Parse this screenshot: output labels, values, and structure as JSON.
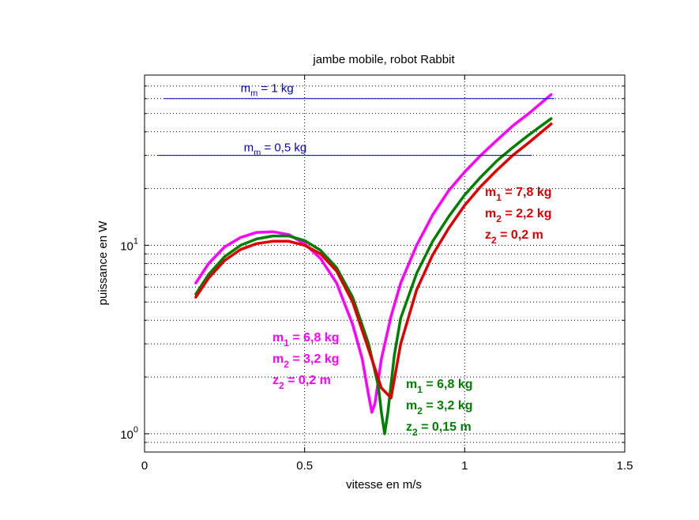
{
  "chart_data": {
    "type": "line",
    "title": "jambe mobile, robot Rabbit",
    "xlabel": "vitesse en m/s",
    "ylabel": "puissance en W",
    "xlim": [
      0,
      1.5
    ],
    "ylim": [
      0.8,
      80
    ],
    "yscale": "log",
    "grid": true,
    "x_ticks": [
      {
        "value": 0,
        "label": "0"
      },
      {
        "value": 0.5,
        "label": "0.5"
      },
      {
        "value": 1,
        "label": "1"
      },
      {
        "value": 1.5,
        "label": "1.5"
      }
    ],
    "y_ticks": [
      {
        "value": 1,
        "base": "10",
        "exp": "0"
      },
      {
        "value": 10,
        "base": "10",
        "exp": "1"
      }
    ],
    "reference_lines": [
      {
        "y": 60,
        "x": [
          0.06,
          1.28
        ],
        "color": "#0000cc",
        "label_main": "m",
        "label_sub": "m",
        "label_rest": " = 1 kg",
        "label_x": 0.3,
        "label_y": 65
      },
      {
        "y": 30,
        "x": [
          0.04,
          1.21
        ],
        "color": "#0000cc",
        "label_main": "m",
        "label_sub": "m",
        "label_rest": " = 0,5 kg",
        "label_x": 0.31,
        "label_y": 31.5
      }
    ],
    "series": [
      {
        "color": "#ff00ff",
        "x": [
          0.16,
          0.2,
          0.25,
          0.3,
          0.35,
          0.4,
          0.45,
          0.5,
          0.55,
          0.6,
          0.65,
          0.68,
          0.7,
          0.71,
          0.72,
          0.74,
          0.77,
          0.8,
          0.85,
          0.9,
          0.95,
          1.0,
          1.05,
          1.1,
          1.15,
          1.2,
          1.27
        ],
        "y": [
          6.3,
          8.0,
          9.8,
          11.0,
          11.7,
          11.8,
          11.4,
          10.2,
          8.5,
          6.3,
          3.8,
          2.5,
          1.6,
          1.3,
          1.45,
          2.5,
          4.2,
          6.3,
          10.0,
          14.5,
          19.5,
          24.5,
          30.0,
          36.0,
          43.0,
          50.0,
          63.0
        ]
      },
      {
        "color": "#008000",
        "x": [
          0.16,
          0.2,
          0.25,
          0.3,
          0.35,
          0.4,
          0.45,
          0.5,
          0.55,
          0.6,
          0.65,
          0.7,
          0.73,
          0.74,
          0.75,
          0.76,
          0.78,
          0.8,
          0.85,
          0.9,
          0.95,
          1.0,
          1.05,
          1.1,
          1.15,
          1.2,
          1.27
        ],
        "y": [
          5.5,
          7.0,
          8.7,
          10.0,
          10.8,
          11.2,
          11.2,
          10.6,
          9.4,
          7.6,
          5.3,
          3.0,
          1.8,
          1.3,
          1.0,
          1.3,
          2.6,
          4.1,
          7.1,
          10.5,
          14.2,
          18.5,
          23.0,
          28.0,
          33.0,
          38.5,
          47.0
        ]
      },
      {
        "color": "#e00000",
        "x": [
          0.16,
          0.2,
          0.25,
          0.3,
          0.35,
          0.4,
          0.45,
          0.5,
          0.55,
          0.6,
          0.65,
          0.7,
          0.74,
          0.77,
          0.8,
          0.85,
          0.9,
          0.95,
          1.0,
          1.05,
          1.1,
          1.15,
          1.2,
          1.27
        ],
        "y": [
          5.3,
          6.7,
          8.3,
          9.5,
          10.2,
          10.5,
          10.5,
          10.0,
          9.0,
          7.3,
          5.0,
          2.8,
          1.75,
          1.55,
          3.0,
          5.8,
          8.9,
          12.3,
          16.3,
          20.5,
          25.0,
          30.0,
          35.0,
          44.0
        ]
      }
    ],
    "annotations": [
      {
        "color": "#ff00ff",
        "lines": [
          {
            "main": "m",
            "sub": "1",
            "rest": " = 6,8 kg"
          },
          {
            "main": "m",
            "sub": "2",
            "rest": " = 3,2 kg"
          },
          {
            "main": "z",
            "sub": "2",
            "rest": " = 0,2 m"
          }
        ]
      },
      {
        "color": "#008000",
        "lines": [
          {
            "main": "m",
            "sub": "1",
            "rest": " = 6,8 kg"
          },
          {
            "main": "m",
            "sub": "2",
            "rest": " = 3,2 kg"
          },
          {
            "main": "z",
            "sub": "2",
            "rest": " = 0,15 m"
          }
        ]
      },
      {
        "color": "#e00000",
        "lines": [
          {
            "main": "m",
            "sub": "1",
            "rest": " = 7,8 kg"
          },
          {
            "main": "m",
            "sub": "2",
            "rest": " = 2,2 kg"
          },
          {
            "main": "z",
            "sub": "2",
            "rest": " = 0,2 m"
          }
        ]
      }
    ]
  }
}
